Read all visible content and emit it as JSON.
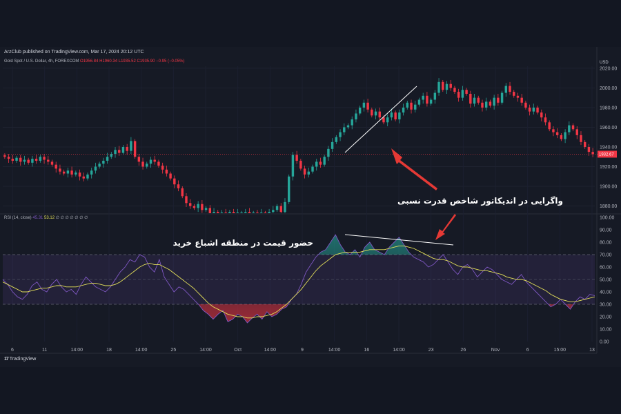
{
  "header": {
    "publisher": "ArzClub published on TradingView.com, Mar 17, 2024 20:12 UTC",
    "symbol": "Gold Spot / U.S. Dollar, 4h, FOREXCOM",
    "ohlc": "O1956.84 H1960.34 L1935.52 C1935.90 −0.95 (−0.05%)",
    "currency": "USD"
  },
  "rsi_legend": {
    "name": "RSI (14, close)",
    "value1": "45.31",
    "value2": "53.12",
    "extras": "∅ ∅ ∅ ∅ ∅ ∅ ∅"
  },
  "annotations": {
    "divergence": "واگرایی در اندیکاتور شاخص قدرت نسبی",
    "overbought": "حضور قیمت در منطقه اشباع خرید"
  },
  "branding": {
    "name": "TradingView",
    "mark": "17"
  },
  "colors": {
    "background": "#131722",
    "pane": "#161a25",
    "bull": "#26a69a",
    "bear": "#f23645",
    "rsi_line": "#7e57c2",
    "rsi_ma": "#e6e25a",
    "rsi_band": "#7e57c2",
    "arrow": "#e53935",
    "trendline": "#ffffff"
  },
  "chart_data": [
    {
      "type": "candlestick",
      "title": "",
      "ylim": [
        1872,
        2022
      ],
      "y_ticks": [
        "2020.00",
        "2000.00",
        "1980.00",
        "1960.00",
        "1940.00",
        "1920.00",
        "1900.00",
        "1880.00"
      ],
      "y_tick_values": [
        2020,
        2000,
        1980,
        1960,
        1940,
        1920,
        1900,
        1880
      ],
      "last_price_label": "1932.67",
      "last_price": 1932.67,
      "x_ticks": [
        "6",
        "11",
        "14:00",
        "18",
        "14:00",
        "25",
        "14:00",
        "Oct",
        "14:00",
        "9",
        "14:00",
        "16",
        "14:00",
        "23",
        "26",
        "Nov",
        "6",
        "15:00",
        "13"
      ],
      "series": {
        "close_path": [
          1930,
          1928,
          1926,
          1929,
          1925,
          1927,
          1924,
          1928,
          1926,
          1930,
          1927,
          1925,
          1922,
          1918,
          1915,
          1913,
          1916,
          1912,
          1914,
          1910,
          1908,
          1912,
          1916,
          1920,
          1923,
          1926,
          1930,
          1933,
          1937,
          1934,
          1940,
          1936,
          1946,
          1930,
          1925,
          1920,
          1923,
          1927,
          1925,
          1921,
          1917,
          1913,
          1908,
          1902,
          1898,
          1890,
          1883,
          1880,
          1878,
          1882,
          1876,
          1878,
          1872,
          1874,
          1872,
          1873,
          1872,
          1874,
          1872,
          1873,
          1873,
          1874,
          1872,
          1873,
          1872,
          1873,
          1872,
          1874,
          1876,
          1880,
          1874,
          1884,
          1910,
          1932,
          1926,
          1918,
          1912,
          1915,
          1920,
          1925,
          1922,
          1930,
          1938,
          1945,
          1950,
          1955,
          1960,
          1962,
          1968,
          1974,
          1980,
          1985,
          1978,
          1972,
          1976,
          1970,
          1965,
          1970,
          1975,
          1968,
          1975,
          1980,
          1985,
          1978,
          1983,
          1988,
          1992,
          1984,
          1988,
          1995,
          2006,
          1998,
          2004,
          2000,
          1996,
          1990,
          1998,
          1994,
          1984,
          1990,
          1985,
          1980,
          1986,
          1982,
          1990,
          1985,
          1995,
          2002,
          1996,
          1992,
          1990,
          1985,
          1980,
          1976,
          1980,
          1975,
          1970,
          1965,
          1958,
          1955,
          1952,
          1948,
          1955,
          1962,
          1958,
          1952,
          1945,
          1940,
          1935,
          1932.67
        ]
      }
    },
    {
      "type": "line",
      "title": "",
      "ylim": [
        0,
        100
      ],
      "y_ticks": [
        "100.00",
        "90.00",
        "80.00",
        "70.00",
        "60.00",
        "50.00",
        "40.00",
        "30.00",
        "20.00",
        "10.00",
        "0.00"
      ],
      "y_tick_values": [
        100,
        90,
        80,
        70,
        60,
        50,
        40,
        30,
        20,
        10,
        0
      ],
      "bands": {
        "upper": 70,
        "middle": 50,
        "lower": 30
      },
      "series": [
        {
          "name": "RSI",
          "values": [
            50,
            46,
            40,
            36,
            34,
            38,
            45,
            48,
            42,
            40,
            46,
            50,
            44,
            40,
            42,
            38,
            46,
            52,
            48,
            44,
            42,
            40,
            44,
            50,
            56,
            60,
            66,
            64,
            70,
            68,
            60,
            56,
            66,
            52,
            46,
            40,
            44,
            42,
            38,
            34,
            30,
            25,
            22,
            18,
            22,
            25,
            16,
            18,
            22,
            20,
            15,
            19,
            22,
            18,
            24,
            20,
            22,
            26,
            28,
            34,
            38,
            46,
            56,
            62,
            68,
            72,
            74,
            80,
            86,
            78,
            72,
            70,
            74,
            68,
            76,
            80,
            74,
            72,
            70,
            76,
            80,
            84,
            78,
            72,
            68,
            66,
            64,
            60,
            62,
            66,
            70,
            64,
            58,
            54,
            60,
            62,
            58,
            52,
            56,
            60,
            58,
            54,
            50,
            48,
            46,
            50,
            54,
            48,
            44,
            40,
            36,
            32,
            28,
            30,
            34,
            30,
            26,
            32,
            36,
            34,
            38,
            37
          ]
        },
        {
          "name": "RSI MA",
          "values": [
            48,
            46,
            44,
            42,
            40,
            40,
            41,
            42,
            43,
            43,
            44,
            45,
            45,
            44,
            44,
            44,
            45,
            46,
            47,
            47,
            46,
            45,
            45,
            46,
            48,
            51,
            54,
            57,
            60,
            62,
            63,
            62,
            62,
            60,
            58,
            55,
            52,
            49,
            46,
            43,
            39,
            35,
            31,
            28,
            26,
            24,
            22,
            21,
            20,
            20,
            19,
            19,
            20,
            20,
            21,
            22,
            24,
            27,
            30,
            34,
            38,
            42,
            47,
            52,
            57,
            61,
            64,
            67,
            70,
            71,
            72,
            72,
            72,
            72,
            73,
            74,
            74,
            74,
            74,
            75,
            76,
            77,
            77,
            76,
            75,
            73,
            71,
            69,
            67,
            66,
            66,
            65,
            63,
            61,
            60,
            60,
            59,
            58,
            57,
            57,
            56,
            55,
            54,
            52,
            51,
            50,
            50,
            49,
            47,
            45,
            43,
            41,
            38,
            36,
            34,
            33,
            32,
            32,
            33,
            34,
            35,
            36
          ]
        }
      ]
    }
  ]
}
